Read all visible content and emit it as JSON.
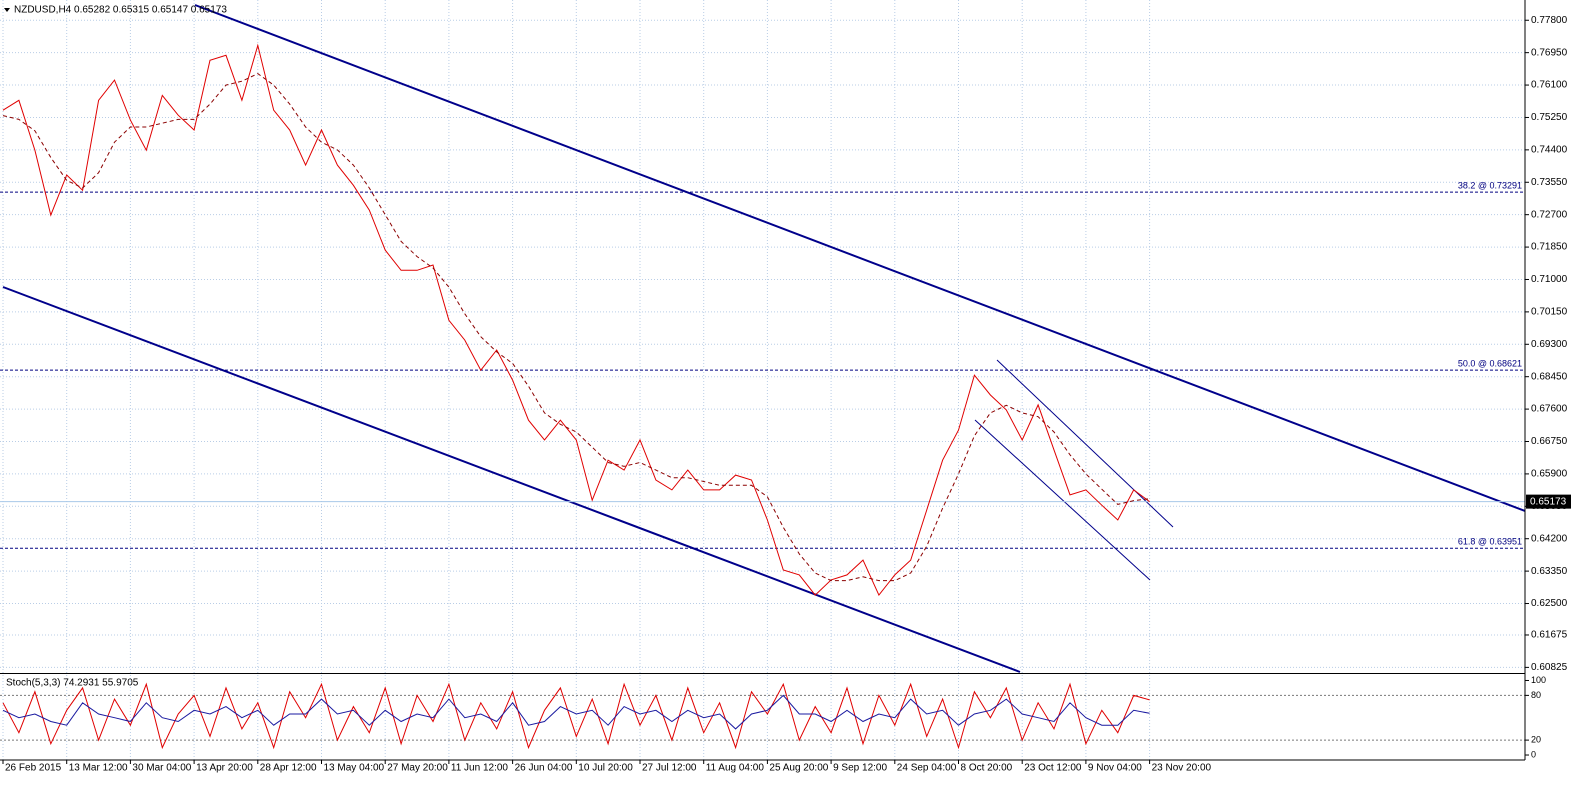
{
  "chart_data": [
    {
      "type": "line",
      "title": "NZDUSD,H4  0.65282 0.65315 0.65147 0.65173",
      "categories": [
        "26 Feb 2015",
        null,
        null,
        null,
        "13 Mar 12:00",
        null,
        null,
        null,
        "30 Mar 04:00",
        null,
        null,
        null,
        "13 Apr 20:00",
        null,
        null,
        null,
        "28 Apr 12:00",
        null,
        null,
        null,
        "13 May 04:00",
        null,
        null,
        null,
        "27 May 20:00",
        null,
        null,
        null,
        "11 Jun 12:00",
        null,
        null,
        null,
        "26 Jun 04:00",
        null,
        null,
        null,
        "10 Jul 20:00",
        null,
        null,
        null,
        "27 Jul 12:00",
        null,
        null,
        null,
        "11 Aug 04:00",
        null,
        null,
        null,
        "25 Aug 20:00",
        null,
        null,
        null,
        "9 Sep 12:00",
        null,
        null,
        null,
        "24 Sep 04:00",
        null,
        null,
        null,
        "8 Oct 20:00",
        null,
        null,
        null,
        "23 Oct 12:00",
        null,
        null,
        null,
        "9 Nov 04:00",
        null,
        null,
        null,
        "23 Nov 20:00"
      ],
      "series": [
        {
          "color": "#e00000",
          "values": [
            0.7544,
            0.757,
            0.7439,
            0.7269,
            0.7374,
            0.7334,
            0.757,
            0.7623,
            0.7518,
            0.7439,
            0.7583,
            0.7531,
            0.7492,
            0.7675,
            0.7688,
            0.757,
            0.7714,
            0.7544,
            0.7492,
            0.74,
            0.7492,
            0.74,
            0.7347,
            0.7282,
            0.7177,
            0.7124,
            0.7124,
            0.7138,
            0.6993,
            0.6941,
            0.6862,
            0.6915,
            0.6836,
            0.6731,
            0.6679,
            0.6731,
            0.6679,
            0.6521,
            0.6626,
            0.66,
            0.6679,
            0.6574,
            0.6548,
            0.66,
            0.6548,
            0.6548,
            0.6587,
            0.6574,
            0.6469,
            0.6338,
            0.6325,
            0.6272,
            0.6312,
            0.6325,
            0.6364,
            0.6272,
            0.6325,
            0.6364,
            0.6495,
            0.6626,
            0.6705,
            0.6849,
            0.6797,
            0.6758,
            0.6679,
            0.6771,
            0.6653,
            0.6535,
            0.6548,
            0.6508,
            0.6469,
            0.6548,
            0.6517
          ]
        },
        {
          "color": "#8b0000",
          "dashed": true,
          "values": [
            0.753,
            0.752,
            0.749,
            0.742,
            0.736,
            0.734,
            0.738,
            0.746,
            0.75,
            0.75,
            0.751,
            0.752,
            0.752,
            0.756,
            0.761,
            0.762,
            0.764,
            0.761,
            0.756,
            0.75,
            0.746,
            0.744,
            0.74,
            0.734,
            0.727,
            0.72,
            0.716,
            0.713,
            0.708,
            0.701,
            0.695,
            0.691,
            0.688,
            0.682,
            0.675,
            0.672,
            0.67,
            0.666,
            0.662,
            0.661,
            0.662,
            0.66,
            0.658,
            0.658,
            0.657,
            0.656,
            0.656,
            0.656,
            0.653,
            0.645,
            0.638,
            0.633,
            0.631,
            0.631,
            0.632,
            0.631,
            0.631,
            0.633,
            0.64,
            0.65,
            0.659,
            0.669,
            0.675,
            0.677,
            0.675,
            0.674,
            0.67,
            0.664,
            0.659,
            0.655,
            0.651,
            0.652,
            0.6525
          ]
        }
      ],
      "ylim": [
        0.6073,
        0.782
      ],
      "yticks": [
        {
          "value": 0.778,
          "label": "0.77800"
        },
        {
          "value": 0.7695,
          "label": "0.76950"
        },
        {
          "value": 0.761,
          "label": "0.76100"
        },
        {
          "value": 0.7525,
          "label": "0.75250"
        },
        {
          "value": 0.744,
          "label": "0.74400"
        },
        {
          "value": 0.7355,
          "label": "0.73550"
        },
        {
          "value": 0.727,
          "label": "0.72700"
        },
        {
          "value": 0.7185,
          "label": "0.71850"
        },
        {
          "value": 0.71,
          "label": "0.71000"
        },
        {
          "value": 0.7015,
          "label": "0.70150"
        },
        {
          "value": 0.693,
          "label": "0.69300"
        },
        {
          "value": 0.6845,
          "label": "0.68450"
        },
        {
          "value": 0.676,
          "label": "0.67600"
        },
        {
          "value": 0.6675,
          "label": "0.66750"
        },
        {
          "value": 0.659,
          "label": "0.65900"
        },
        {
          "value": 0.6505,
          "label": "0.65050"
        },
        {
          "value": 0.642,
          "label": "0.64200"
        },
        {
          "value": 0.6335,
          "label": "0.63350"
        },
        {
          "value": 0.625,
          "label": "0.62500"
        },
        {
          "value": 0.61675,
          "label": "0.61675"
        },
        {
          "value": 0.60825,
          "label": "0.60825"
        }
      ],
      "grid": true,
      "fib_levels": [
        {
          "value": 0.73291,
          "label": "38.2 @ 0.73291"
        },
        {
          "value": 0.68621,
          "label": "50.0 @ 0.68621"
        },
        {
          "value": 0.63951,
          "label": "61.8 @ 0.63951"
        }
      ],
      "fib_color": "#000080",
      "last_price": 0.65173
    },
    {
      "type": "line",
      "title": "Stoch(5,3,3) 74.2931 55.9705",
      "series": [
        {
          "color": "#e00000",
          "values": [
            70,
            30,
            85,
            15,
            60,
            90,
            20,
            75,
            40,
            95,
            10,
            55,
            80,
            25,
            90,
            35,
            70,
            10,
            85,
            50,
            95,
            20,
            65,
            30,
            90,
            15,
            80,
            45,
            95,
            20,
            70,
            35,
            85,
            10,
            60,
            90,
            25,
            75,
            15,
            95,
            40,
            80,
            20,
            90,
            30,
            70,
            10,
            85,
            55,
            95,
            20,
            65,
            30,
            90,
            15,
            80,
            40,
            95,
            25,
            75,
            10,
            85,
            50,
            90,
            20,
            70,
            35,
            95,
            15,
            60,
            30,
            80,
            74
          ]
        },
        {
          "color": "#1a1aa0",
          "values": [
            60,
            50,
            55,
            45,
            40,
            70,
            55,
            50,
            45,
            70,
            50,
            45,
            60,
            55,
            65,
            50,
            60,
            40,
            55,
            55,
            75,
            55,
            60,
            40,
            60,
            45,
            55,
            50,
            75,
            50,
            55,
            45,
            70,
            40,
            45,
            65,
            55,
            60,
            40,
            65,
            55,
            60,
            45,
            60,
            50,
            55,
            35,
            55,
            60,
            80,
            55,
            55,
            45,
            60,
            45,
            55,
            50,
            75,
            55,
            60,
            40,
            55,
            60,
            75,
            55,
            50,
            45,
            70,
            50,
            40,
            40,
            60,
            56
          ]
        }
      ],
      "ylim": [
        -4,
        106
      ],
      "yticks": [
        0,
        20,
        80,
        100
      ],
      "levels": [
        20,
        80
      ]
    }
  ]
}
